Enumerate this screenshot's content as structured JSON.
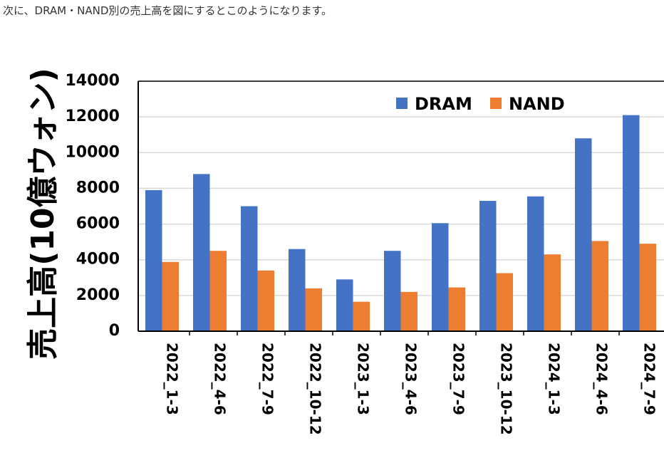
{
  "intro_text": "次に、DRAM・NAND別の売上高を図にするとこのようになります。",
  "chart_data": {
    "type": "bar",
    "categories": [
      "2022_1-3",
      "2022_4-6",
      "2022_7-9",
      "2022_10-12",
      "2023_1-3",
      "2023_4-6",
      "2023_7-9",
      "2023_10-12",
      "2024_1-3",
      "2024_4-6",
      "2024_7-9"
    ],
    "series": [
      {
        "name": "DRAM",
        "color": "#4472C4",
        "values": [
          7900,
          8800,
          7000,
          4600,
          2900,
          4500,
          6050,
          7300,
          7550,
          10800,
          12100
        ]
      },
      {
        "name": "NAND",
        "color": "#ED7D31",
        "values": [
          3880,
          4500,
          3400,
          2400,
          1650,
          2200,
          2450,
          3250,
          4300,
          5050,
          4900
        ]
      }
    ],
    "yticks": [
      "0",
      "2000",
      "4000",
      "6000",
      "8000",
      "10000",
      "12000",
      "14000"
    ],
    "ylim": [
      0,
      14000
    ],
    "ylabel": "売上高(10億ウォン)",
    "xlabel": "",
    "grid": true,
    "legend_position": "top-right"
  }
}
